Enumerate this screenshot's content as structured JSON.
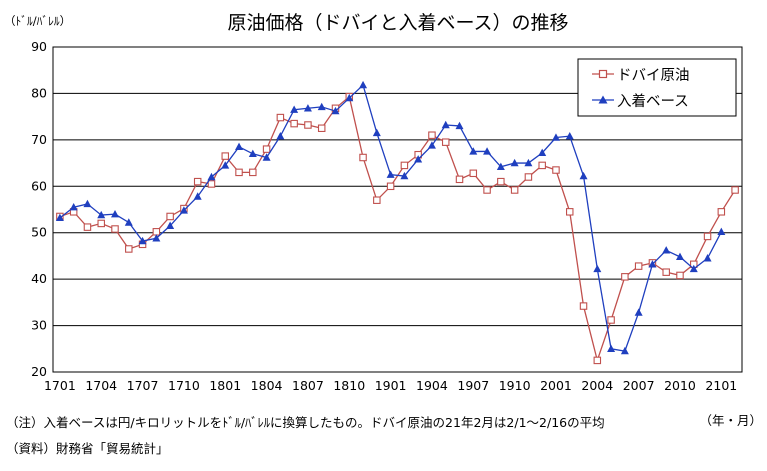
{
  "chart_data": {
    "type": "line",
    "title": "原油価格（ドバイと入着ベース）の推移",
    "ylabel": "（ﾄﾞﾙ/ﾊﾞﾚﾙ）",
    "xlabel": "（年・月）",
    "ylim": [
      20,
      90
    ],
    "yticks": [
      "90",
      "80",
      "70",
      "60",
      "50",
      "40",
      "30",
      "20"
    ],
    "x_tick_labels": [
      "1701",
      "1704",
      "1707",
      "1710",
      "1801",
      "1804",
      "1807",
      "1810",
      "1901",
      "1904",
      "1907",
      "1910",
      "2001",
      "2004",
      "2007",
      "2010",
      "2101"
    ],
    "x": [
      "1701",
      "1702",
      "1703",
      "1704",
      "1705",
      "1706",
      "1707",
      "1708",
      "1709",
      "1710",
      "1711",
      "1712",
      "1801",
      "1802",
      "1803",
      "1804",
      "1805",
      "1806",
      "1807",
      "1808",
      "1809",
      "1810",
      "1811",
      "1812",
      "1901",
      "1902",
      "1903",
      "1904",
      "1905",
      "1906",
      "1907",
      "1908",
      "1909",
      "1910",
      "1911",
      "1912",
      "2001",
      "2002",
      "2003",
      "2004",
      "2005",
      "2006",
      "2007",
      "2008",
      "2009",
      "2010",
      "2011",
      "2012",
      "2101",
      "2102"
    ],
    "grid": true,
    "legend_position": "top-right",
    "series": [
      {
        "name": "ドバイ原油",
        "color": "#c0504d",
        "marker": "square-open",
        "values": [
          53.5,
          54.5,
          51.2,
          52,
          50.8,
          46.5,
          47.5,
          50.2,
          53.5,
          55.2,
          61,
          60.5,
          66.5,
          63,
          63,
          68,
          74.8,
          73.5,
          73.2,
          72.5,
          76.8,
          79.3,
          66.2,
          57,
          60,
          64.5,
          66.8,
          71,
          69.5,
          61.5,
          62.8,
          59.2,
          61,
          59.2,
          62,
          64.5,
          63.5,
          54.5,
          34.2,
          22.5,
          31.2,
          40.5,
          42.8,
          43.5,
          41.5,
          40.8,
          43.2,
          49.2,
          54.5,
          59.2
        ]
      },
      {
        "name": "入着ベース",
        "color": "#1f3fbf",
        "marker": "triangle-filled",
        "values": [
          53.2,
          55.5,
          56.2,
          53.8,
          54,
          52.2,
          48.2,
          48.8,
          51.5,
          54.8,
          57.8,
          62,
          64.5,
          68.5,
          67,
          66.2,
          70.8,
          76.5,
          76.8,
          77.1,
          76.2,
          79,
          81.8,
          71.5,
          62.5,
          62.2,
          65.8,
          68.8,
          73.2,
          73,
          67.5,
          67.5,
          64.2,
          65,
          65,
          67.2,
          70.5,
          70.8,
          62.2,
          42.2,
          25,
          24.5,
          32.8,
          43.2,
          46.2,
          44.8,
          42.2,
          44.5,
          50.2,
          null
        ]
      }
    ],
    "notes": [
      "（注）入着ベースは円/キロリットルをﾄﾞﾙ/ﾊﾞﾚﾙに換算したもの。ドバイ原油の21年2月は2/1～2/16の平均",
      "（資料）財務省「貿易統計」"
    ]
  }
}
